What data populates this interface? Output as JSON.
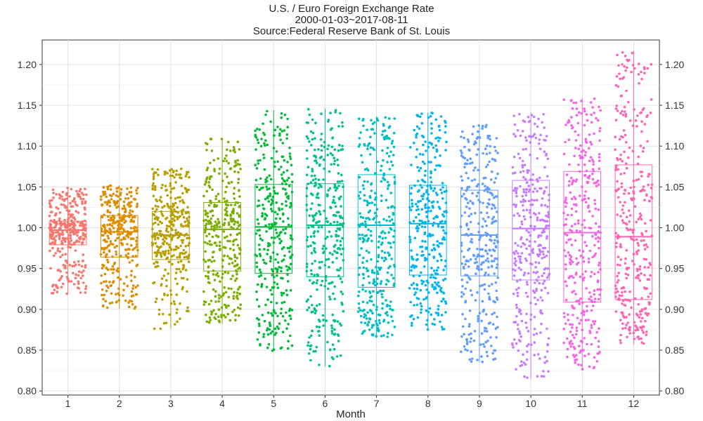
{
  "chart_data": {
    "type": "box",
    "title": "U.S. / Euro Foreign Exchange Rate",
    "subtitle": "2000-01-03~2017-08-11",
    "source": "Source:Federal Reserve Bank of St. Louis",
    "xlabel": "Month",
    "ylabel": "",
    "categories": [
      "1",
      "2",
      "3",
      "4",
      "5",
      "6",
      "7",
      "8",
      "9",
      "10",
      "11",
      "12"
    ],
    "ylim": [
      0.795,
      1.23
    ],
    "yticks": [
      0.8,
      0.85,
      0.9,
      0.95,
      1.0,
      1.05,
      1.1,
      1.15,
      1.2
    ],
    "ytick_labels": [
      "0.80",
      "0.85",
      "0.90",
      "0.95",
      "1.00",
      "1.05",
      "1.10",
      "1.15",
      "1.20"
    ],
    "grid": true,
    "jitter_points": true,
    "series": [
      {
        "month": "1",
        "color": "#F8766D",
        "min": 0.919,
        "q1": 0.979,
        "median": 0.997,
        "q3": 1.008,
        "max": 1.049
      },
      {
        "month": "2",
        "color": "#DE8C00",
        "min": 0.901,
        "q1": 0.964,
        "median": 0.995,
        "q3": 1.015,
        "max": 1.052
      },
      {
        "month": "3",
        "color": "#B79F00",
        "min": 0.876,
        "q1": 0.961,
        "median": 0.991,
        "q3": 1.02,
        "max": 1.073
      },
      {
        "month": "4",
        "color": "#7CAE00",
        "min": 0.882,
        "q1": 0.947,
        "median": 0.998,
        "q3": 1.031,
        "max": 1.109
      },
      {
        "month": "5",
        "color": "#00BA38",
        "min": 0.849,
        "q1": 0.944,
        "median": 1.001,
        "q3": 1.053,
        "max": 1.144
      },
      {
        "month": "6",
        "color": "#00C08B",
        "min": 0.83,
        "q1": 0.94,
        "median": 1.003,
        "q3": 1.054,
        "max": 1.146
      },
      {
        "month": "7",
        "color": "#00BFC4",
        "min": 0.865,
        "q1": 0.927,
        "median": 1.003,
        "q3": 1.065,
        "max": 1.136
      },
      {
        "month": "8",
        "color": "#00B4F0",
        "min": 0.875,
        "q1": 0.942,
        "median": 1.005,
        "q3": 1.052,
        "max": 1.141
      },
      {
        "month": "9",
        "color": "#619CFF",
        "min": 0.835,
        "q1": 0.941,
        "median": 0.991,
        "q3": 1.046,
        "max": 1.126
      },
      {
        "month": "10",
        "color": "#C77CFF",
        "min": 0.815,
        "q1": 0.936,
        "median": 0.999,
        "q3": 1.058,
        "max": 1.141
      },
      {
        "month": "11",
        "color": "#F564E3",
        "min": 0.826,
        "q1": 0.909,
        "median": 0.994,
        "q3": 1.069,
        "max": 1.159
      },
      {
        "month": "12",
        "color": "#FF64B0",
        "min": 0.857,
        "q1": 0.912,
        "median": 0.989,
        "q3": 1.077,
        "max": 1.217
      }
    ]
  }
}
